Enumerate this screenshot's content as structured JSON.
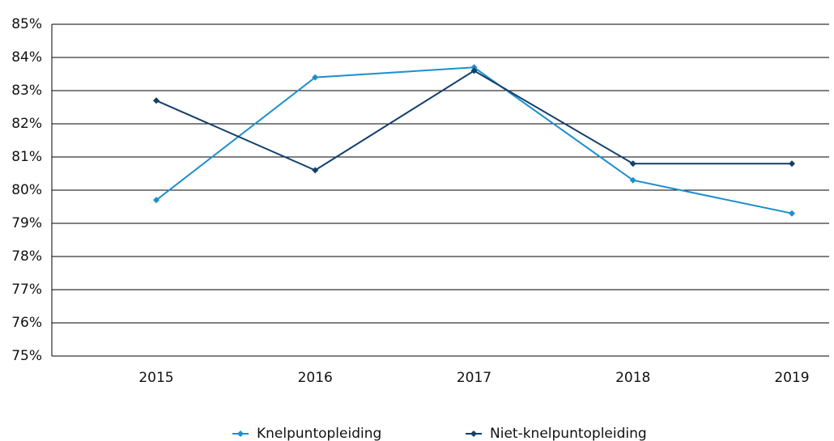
{
  "chart_data": {
    "type": "line",
    "categories": [
      "2015",
      "2016",
      "2017",
      "2018",
      "2019"
    ],
    "series": [
      {
        "name": "Knelpuntopleiding",
        "color": "#1c8fcc",
        "values": [
          79.7,
          83.4,
          83.7,
          80.3,
          79.3
        ]
      },
      {
        "name": "Niet-knelpuntopleiding",
        "color": "#123f6b",
        "values": [
          82.7,
          80.6,
          83.6,
          80.8,
          80.8
        ]
      }
    ],
    "ylim": [
      75,
      85
    ],
    "yticks": [
      {
        "value": 75,
        "label": "75%"
      },
      {
        "value": 76,
        "label": "76%"
      },
      {
        "value": 77,
        "label": "77%"
      },
      {
        "value": 78,
        "label": "78%"
      },
      {
        "value": 79,
        "label": "79%"
      },
      {
        "value": 80,
        "label": "80%"
      },
      {
        "value": 81,
        "label": "81%"
      },
      {
        "value": 82,
        "label": "82%"
      },
      {
        "value": 83,
        "label": "83%"
      },
      {
        "value": 84,
        "label": "84%"
      },
      {
        "value": 85,
        "label": "85%"
      }
    ],
    "grid": true,
    "legend": "bottom"
  }
}
